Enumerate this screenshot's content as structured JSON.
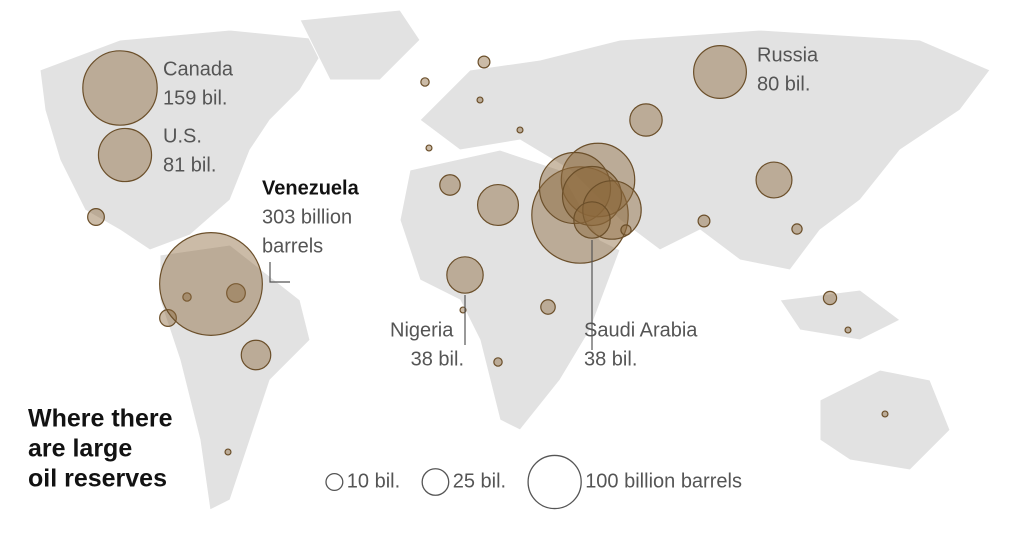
{
  "map": {
    "title_lines": [
      "Where there",
      "are large",
      "oil reserves"
    ],
    "color": "#8c693c",
    "labeled": [
      {
        "name": "Canada",
        "value": 159,
        "label": [
          "159 bil."
        ]
      },
      {
        "name": "U.S.",
        "value": 81,
        "label": [
          "81 bil."
        ]
      },
      {
        "name": "Venezuela",
        "value": 303,
        "label": [
          "303 billion",
          "barrels"
        ]
      },
      {
        "name": "Russia",
        "value": 80,
        "label": [
          "80 bil."
        ]
      },
      {
        "name": "Nigeria",
        "value": 38,
        "label": [
          "38 bil."
        ]
      },
      {
        "name": "Saudi Arabia",
        "value": 38,
        "label": [
          "38 bil."
        ]
      }
    ],
    "other_values": [
      267,
      155,
      145,
      100,
      98,
      48,
      30,
      37,
      25,
      12,
      10,
      8,
      8,
      6,
      5,
      4,
      4,
      3,
      3,
      2,
      2,
      2,
      1,
      1,
      1,
      1,
      1,
      1,
      1
    ],
    "legend": [
      {
        "value": 10,
        "label": "10 bil."
      },
      {
        "value": 25,
        "label": "25 bil."
      },
      {
        "value": 100,
        "label": "100 billion barrels"
      }
    ]
  }
}
